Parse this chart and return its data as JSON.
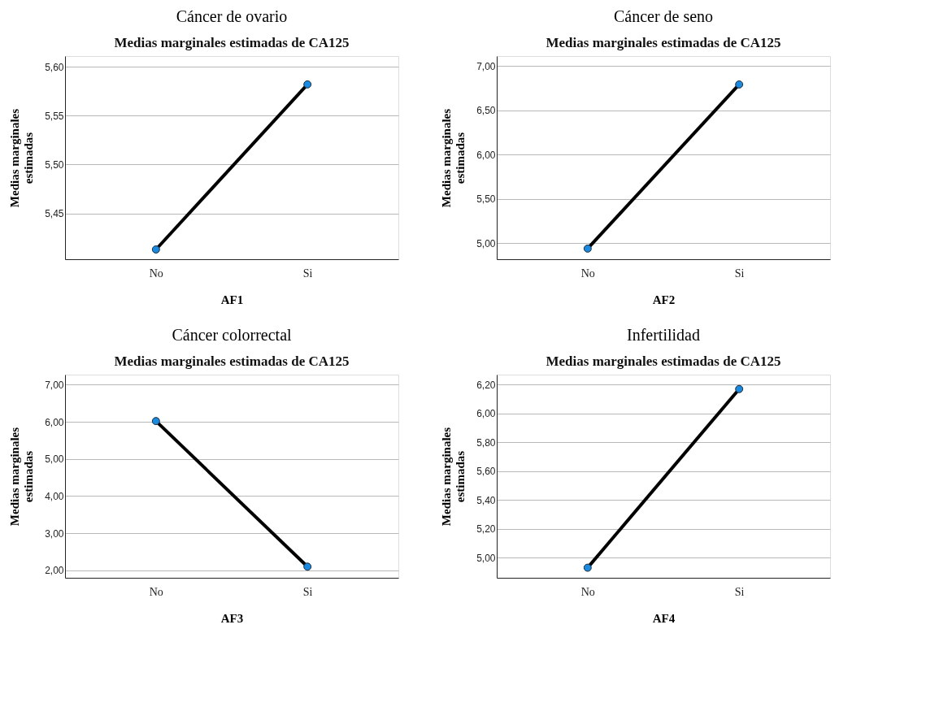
{
  "chart_data": [
    {
      "type": "line",
      "title": "Cáncer de ovario",
      "subtitle": "Medias marginales estimadas de CA125",
      "xlabel": "AF1",
      "ylabel": "Medias marginales estimadas",
      "categories": [
        "No",
        "Si"
      ],
      "series": [
        {
          "color": "#1a8ae0",
          "values": [
            5.413,
            5.582
          ]
        }
      ],
      "ylim": [
        5.403,
        5.611
      ],
      "yticks": [
        {
          "value": 5.45,
          "label": "5,45"
        },
        {
          "value": 5.5,
          "label": "5,50"
        },
        {
          "value": 5.55,
          "label": "5,55"
        },
        {
          "value": 5.6,
          "label": "5,60"
        }
      ],
      "grid": "y",
      "marker": "circle",
      "line_style": "solid"
    },
    {
      "type": "line",
      "title": "Cáncer de seno",
      "subtitle": "Medias marginales estimadas de CA125",
      "xlabel": "AF2",
      "ylabel": "Medias marginales estimadas",
      "categories": [
        "No",
        "Si"
      ],
      "series": [
        {
          "color": "#1a8ae0",
          "values": [
            4.94,
            6.79
          ]
        }
      ],
      "ylim": [
        4.82,
        7.11
      ],
      "yticks": [
        {
          "value": 5,
          "label": "5,00"
        },
        {
          "value": 5.5,
          "label": "5,50"
        },
        {
          "value": 6,
          "label": "6,00"
        },
        {
          "value": 6.5,
          "label": "6,50"
        },
        {
          "value": 7,
          "label": "7,00"
        }
      ],
      "grid": "y",
      "marker": "circle",
      "line_style": "solid"
    },
    {
      "type": "line",
      "title": "Cáncer colorrectal",
      "subtitle": "Medias marginales estimadas de CA125",
      "xlabel": "AF3",
      "ylabel": "Medias marginales estimadas",
      "categories": [
        "No",
        "Si"
      ],
      "series": [
        {
          "color": "#1a8ae0",
          "values": [
            6.02,
            2.1
          ]
        }
      ],
      "ylim": [
        1.8,
        7.27
      ],
      "yticks": [
        {
          "value": 2,
          "label": "2,00"
        },
        {
          "value": 3,
          "label": "3,00"
        },
        {
          "value": 4,
          "label": "4,00"
        },
        {
          "value": 5,
          "label": "5,00"
        },
        {
          "value": 6,
          "label": "6,00"
        },
        {
          "value": 7,
          "label": "7,00"
        }
      ],
      "grid": "y",
      "marker": "circle",
      "line_style": "solid"
    },
    {
      "type": "line",
      "title": "Infertilidad",
      "subtitle": "Medias marginales estimadas de CA125",
      "xlabel": "AF4",
      "ylabel": "Medias marginales estimadas",
      "categories": [
        "No",
        "Si"
      ],
      "series": [
        {
          "color": "#1a8ae0",
          "values": [
            4.93,
            6.17
          ]
        }
      ],
      "ylim": [
        4.86,
        6.27
      ],
      "yticks": [
        {
          "value": 5,
          "label": "5,00"
        },
        {
          "value": 5.2,
          "label": "5,20"
        },
        {
          "value": 5.4,
          "label": "5,40"
        },
        {
          "value": 5.6,
          "label": "5,60"
        },
        {
          "value": 5.8,
          "label": "5,80"
        },
        {
          "value": 6,
          "label": "6,00"
        },
        {
          "value": 6.2,
          "label": "6,20"
        }
      ],
      "grid": "y",
      "marker": "circle",
      "line_style": "solid"
    }
  ]
}
